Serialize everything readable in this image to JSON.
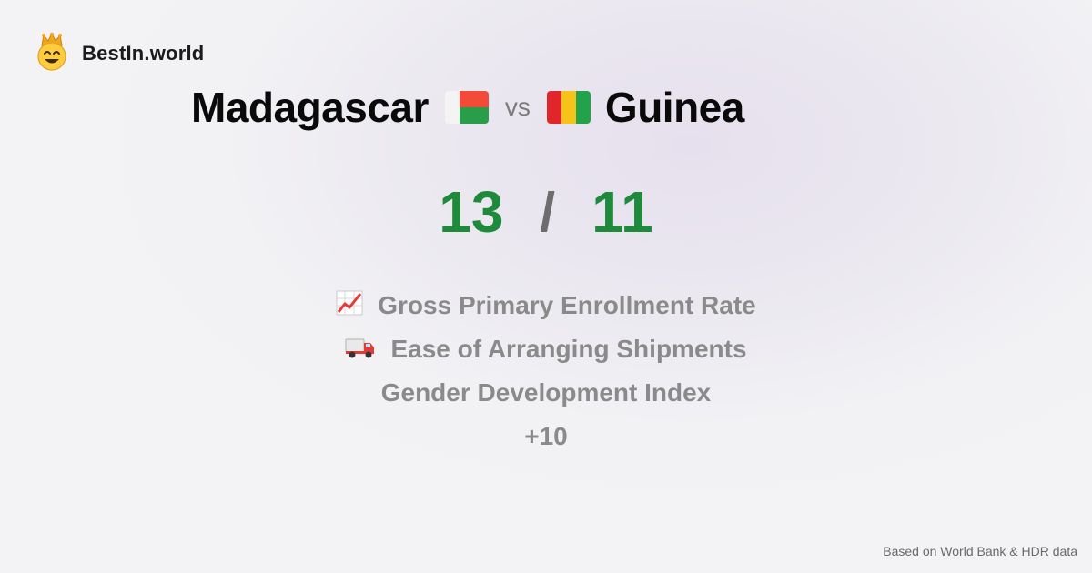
{
  "brand": {
    "name": "BestIn.world",
    "icon": "crowned-smiley-icon"
  },
  "comparison": {
    "left_country": "Madagascar",
    "vs_label": "vs",
    "right_country": "Guinea",
    "left_flag": {
      "icon": "madagascar-flag-icon",
      "colors": [
        "#f4f4f4",
        "#f34b3a",
        "#2a9d4b"
      ]
    },
    "right_flag": {
      "icon": "guinea-flag-icon",
      "colors": [
        "#e0262b",
        "#f6c418",
        "#21a24b"
      ]
    }
  },
  "score": {
    "left": "13",
    "separator": "/",
    "right": "11",
    "color": "#1f8a3b"
  },
  "categories": [
    {
      "label": "Gross Primary Enrollment Rate",
      "icon": "chart-increasing-icon"
    },
    {
      "label": "Ease of Arranging Shipments",
      "icon": "delivery-truck-icon"
    },
    {
      "label": "Gender Development Index",
      "icon": ""
    },
    {
      "label": "+10",
      "icon": ""
    }
  ],
  "footer": {
    "source": "Based on World Bank & HDR data"
  }
}
